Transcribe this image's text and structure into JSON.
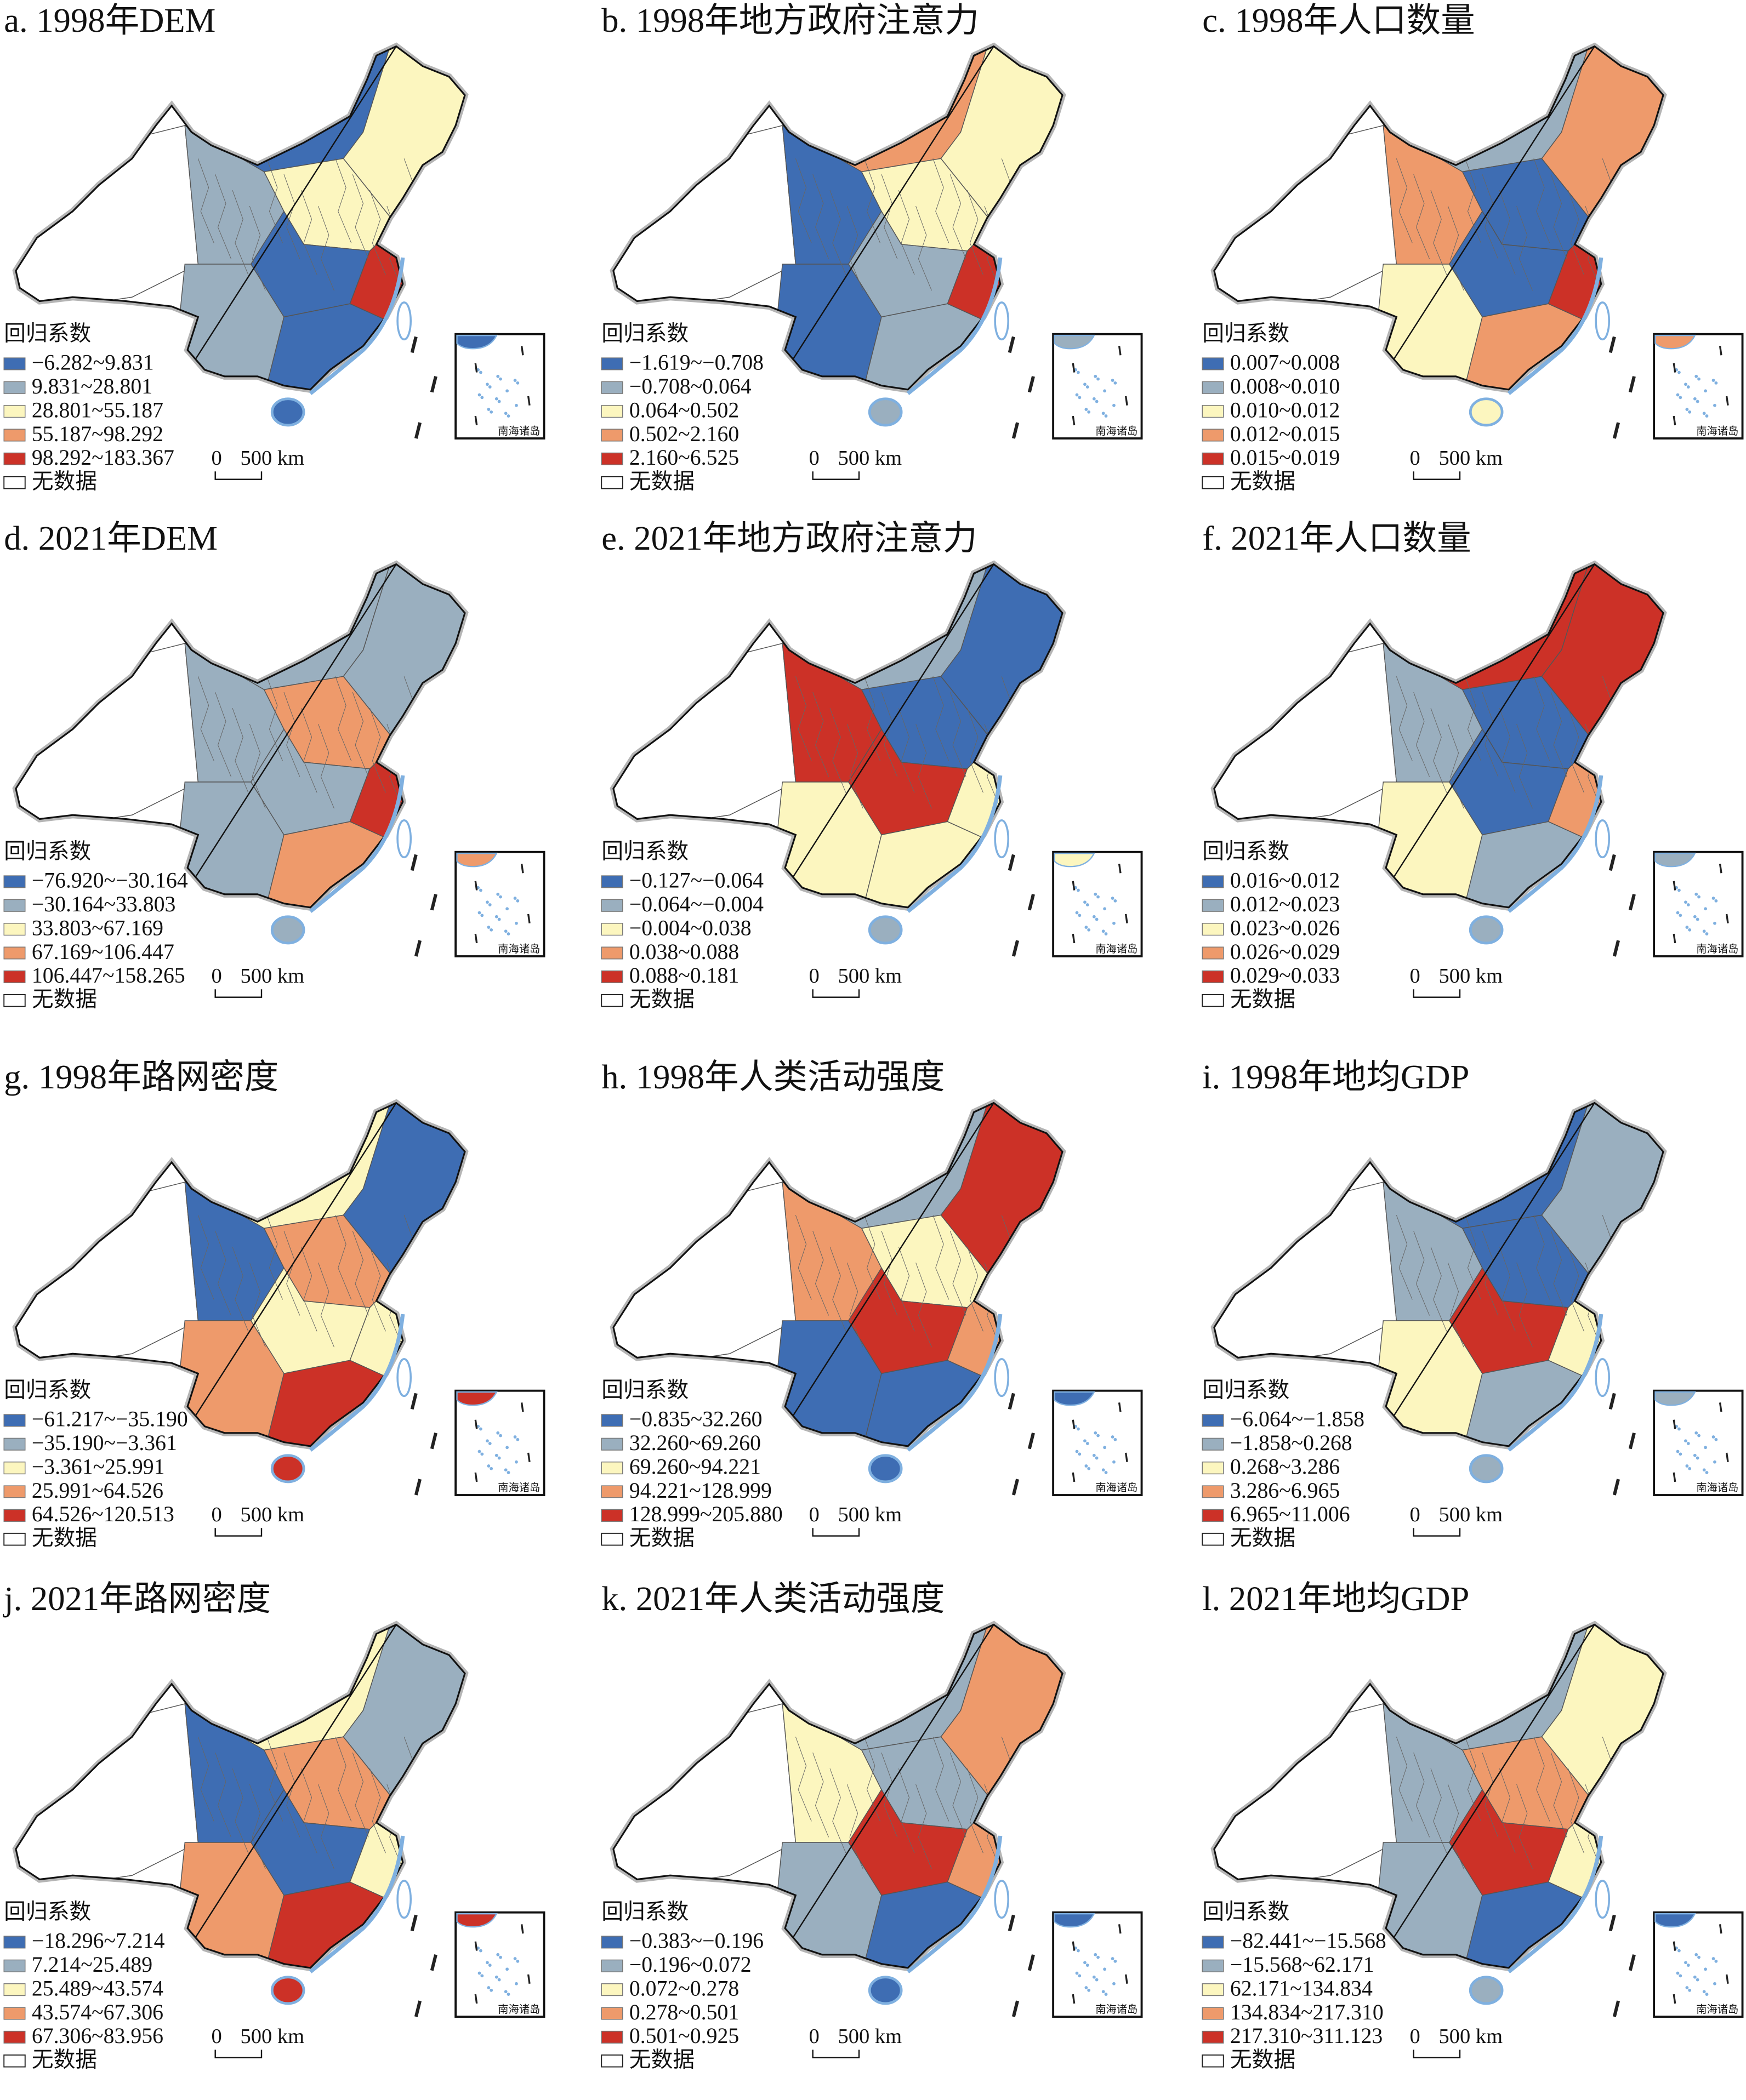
{
  "colors": {
    "c0": "#3e6db3",
    "c1": "#9aafbf",
    "c2": "#fcf6bf",
    "c3": "#ee9a6b",
    "c4": "#cc3127",
    "nodata": "#ffffff",
    "coast": "#7fb0e0"
  },
  "common": {
    "legend_title": "回归系数",
    "no_data": "无数据",
    "scale_zero": "0",
    "scale_label": "500 km",
    "inset_label": "南海诸岛"
  },
  "region_order": [
    "xinjiang",
    "tibet",
    "qinghai-gansu",
    "inner-mongolia",
    "northeast",
    "north",
    "central",
    "east",
    "southwest",
    "south",
    "hainan"
  ],
  "panels": [
    {
      "title": "a. 1998年DEM",
      "legend": [
        "−6.282~9.831",
        "9.831~28.801",
        "28.801~55.187",
        "55.187~98.292",
        "98.292~183.367"
      ],
      "region_classes": [
        -1,
        -1,
        1,
        0,
        2,
        2,
        0,
        4,
        1,
        0,
        0
      ]
    },
    {
      "title": "b. 1998年地方政府注意力",
      "legend": [
        "−1.619~−0.708",
        "−0.708~0.064",
        "0.064~0.502",
        "0.502~2.160",
        "2.160~6.525"
      ],
      "region_classes": [
        -1,
        -1,
        0,
        3,
        2,
        2,
        1,
        4,
        0,
        1,
        1
      ]
    },
    {
      "title": "c. 1998年人口数量",
      "legend": [
        "0.007~0.008",
        "0.008~0.010",
        "0.010~0.012",
        "0.012~0.015",
        "0.015~0.019"
      ],
      "region_classes": [
        -1,
        -1,
        3,
        1,
        3,
        0,
        0,
        4,
        2,
        3,
        2
      ]
    },
    {
      "title": "d. 2021年DEM",
      "legend": [
        "−76.920~−30.164",
        "−30.164~33.803",
        "33.803~67.169",
        "67.169~106.447",
        "106.447~158.265"
      ],
      "region_classes": [
        -1,
        -1,
        1,
        1,
        1,
        3,
        1,
        4,
        1,
        3,
        1
      ]
    },
    {
      "title": "e. 2021年地方政府注意力",
      "legend": [
        "−0.127~−0.064",
        "−0.064~−0.004",
        "−0.004~0.038",
        "0.038~0.088",
        "0.088~0.181"
      ],
      "region_classes": [
        -1,
        -1,
        4,
        1,
        0,
        0,
        4,
        2,
        2,
        2,
        1
      ]
    },
    {
      "title": "f. 2021年人口数量",
      "legend": [
        "0.016~0.012",
        "0.012~0.023",
        "0.023~0.026",
        "0.026~0.029",
        "0.029~0.033"
      ],
      "region_classes": [
        -1,
        -1,
        1,
        4,
        4,
        0,
        0,
        3,
        2,
        1,
        1
      ]
    },
    {
      "title": "g. 1998年路网密度",
      "legend": [
        "−61.217~−35.190",
        "−35.190~−3.361",
        "−3.361~25.991",
        "25.991~64.526",
        "64.526~120.513"
      ],
      "region_classes": [
        -1,
        -1,
        0,
        2,
        0,
        3,
        2,
        2,
        3,
        4,
        4
      ]
    },
    {
      "title": "h. 1998年人类活动强度",
      "legend": [
        "−0.835~32.260",
        "32.260~69.260",
        "69.260~94.221",
        "94.221~128.999",
        "128.999~205.880"
      ],
      "region_classes": [
        -1,
        -1,
        3,
        1,
        4,
        2,
        4,
        3,
        0,
        0,
        0
      ]
    },
    {
      "title": "i. 1998年地均GDP",
      "legend": [
        "−6.064~−1.858",
        "−1.858~0.268",
        "0.268~3.286",
        "3.286~6.965",
        "6.965~11.006"
      ],
      "region_classes": [
        -1,
        -1,
        1,
        0,
        1,
        0,
        4,
        2,
        2,
        1,
        1
      ]
    },
    {
      "title": "j. 2021年路网密度",
      "legend": [
        "−18.296~7.214",
        "7.214~25.489",
        "25.489~43.574",
        "43.574~67.306",
        "67.306~83.956"
      ],
      "region_classes": [
        -1,
        -1,
        0,
        2,
        1,
        3,
        0,
        2,
        3,
        4,
        4
      ]
    },
    {
      "title": "k. 2021年人类活动强度",
      "legend": [
        "−0.383~−0.196",
        "−0.196~0.072",
        "0.072~0.278",
        "0.278~0.501",
        "0.501~0.925"
      ],
      "region_classes": [
        -1,
        -1,
        2,
        1,
        3,
        1,
        4,
        3,
        1,
        0,
        0
      ]
    },
    {
      "title": "l. 2021年地均GDP",
      "legend": [
        "−82.441~−15.568",
        "−15.568~62.171",
        "62.171~134.834",
        "134.834~217.310",
        "217.310~311.123"
      ],
      "region_classes": [
        -1,
        -1,
        1,
        1,
        2,
        3,
        4,
        2,
        1,
        0,
        1
      ]
    }
  ]
}
